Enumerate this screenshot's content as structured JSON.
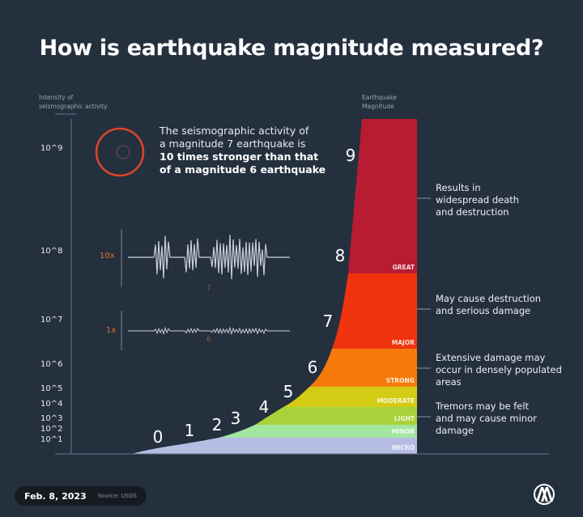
{
  "title": "How is earthquake magnitude measured?",
  "y_axis_label": [
    "Intensity of",
    "seismographic activity"
  ],
  "magnitude_axis_label": [
    "Earthquake",
    "Magnitude"
  ],
  "info": {
    "line1": "The seismographic activity of",
    "line2": "a magnitude 7 earthquake is",
    "bold1": "10 times stronger than that",
    "bold2": "of a magnitude 6 earthquake"
  },
  "waves": [
    {
      "factor": "10x",
      "magnitude": "7"
    },
    {
      "factor": "1x",
      "magnitude": "6"
    }
  ],
  "colors": {
    "background": "#25303f",
    "accent": "#e0452a",
    "factor_text": "#e0702a",
    "great": "#b71c32",
    "major": "#f0330f",
    "strong": "#f57a0a",
    "moderate": "#d4cc14",
    "light": "#a9d23a",
    "minor": "#a3e6a0",
    "micro": "#b5bde3"
  },
  "chart_data": {
    "type": "area",
    "title": "How is earthquake magnitude measured?",
    "ylabel": "Intensity of seismographic activity",
    "xlabel": "Earthquake Magnitude",
    "y_scale": "log",
    "y_ticks": [
      "10^9",
      "10^8",
      "10^7",
      "10^6",
      "10^5",
      "10^4",
      "10^3",
      "10^2",
      "10^1"
    ],
    "magnitudes": [
      "0",
      "1",
      "2",
      "3",
      "4",
      "5",
      "6",
      "7",
      "8",
      "9"
    ],
    "classes": [
      {
        "name": "GREAT",
        "color": "#b71c32"
      },
      {
        "name": "MAJOR",
        "color": "#f0330f"
      },
      {
        "name": "STRONG",
        "color": "#f57a0a"
      },
      {
        "name": "MODERATE",
        "color": "#d4cc14"
      },
      {
        "name": "LIGHT",
        "color": "#a9d23a"
      },
      {
        "name": "MINOR",
        "color": "#a3e6a0"
      },
      {
        "name": "MICRO",
        "color": "#b5bde3"
      }
    ],
    "descriptions": [
      [
        "Results in",
        "widespread death",
        "and destruction"
      ],
      [
        "May cause destruction",
        "and serious damage"
      ],
      [
        "Extensive damage may",
        "occur in densely populated",
        "areas"
      ],
      [
        "Tremors may be felt",
        "and may cause minor",
        "damage"
      ]
    ],
    "grid": false
  },
  "footer": {
    "date": "Feb. 8, 2023",
    "source": "Source: USGS",
    "logo": "AA"
  }
}
